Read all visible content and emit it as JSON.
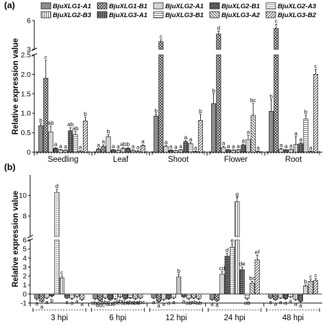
{
  "panels": {
    "a": "(a)",
    "b": "(b)"
  },
  "legend": [
    "BjuXLG1-A1",
    "BjuXLG1-B1",
    "BjuXLG2-A1",
    "BjuXLG2-B1",
    "BjuXLG2-A3",
    "BjuXLG2-B3",
    "BjuXLG3-A1",
    "BjuXLG3-B1",
    "BjuXLG3-A2",
    "BjuXLG3-B2"
  ],
  "chart_data": [
    {
      "panel": "(a)",
      "type": "bar",
      "ylabel": "Relative expression  value",
      "categories": [
        "Seedling",
        "Leaf",
        "Shoot",
        "Flower",
        "Root"
      ],
      "axis_break": {
        "lower": [
          0,
          2.5
        ],
        "upper": [
          3,
          6
        ]
      },
      "yticks": [
        0,
        0.5,
        1.0,
        1.5,
        2.0,
        2.5,
        3,
        6
      ],
      "series": [
        {
          "name": "BjuXLG1-A1",
          "values": [
            0.68,
            0.08,
            0.93,
            1.25,
            1.05
          ],
          "errors": [
            0.05,
            0.02,
            0.05,
            0.25,
            0.3
          ],
          "letters": [
            "b",
            "a",
            "b",
            "b",
            "b"
          ]
        },
        {
          "name": "BjuXLG1-B1",
          "values": [
            1.9,
            0.15,
            3.8,
            4.6,
            5.2
          ],
          "errors": [
            0.45,
            0.04,
            0.2,
            0.3,
            0.4
          ],
          "letters": [
            "c",
            "a",
            "c",
            "d",
            "c"
          ]
        },
        {
          "name": "BjuXLG2-A1",
          "values": [
            0.52,
            0.4,
            0.15,
            0.12,
            0.08
          ],
          "errors": [
            0.15,
            0.05,
            0.03,
            0.03,
            0.02
          ],
          "letters": [
            "ab",
            "b",
            "a",
            "a",
            "a"
          ]
        },
        {
          "name": "BjuXLG2-B1",
          "values": [
            0.1,
            0.06,
            0.05,
            0.06,
            0.06
          ],
          "errors": [
            0.02,
            0.01,
            0.01,
            0.01,
            0.01
          ],
          "letters": [
            "a",
            "a",
            "a",
            "a",
            "a"
          ]
        },
        {
          "name": "BjuXLG2-A3",
          "values": [
            0.06,
            0.05,
            0.04,
            0.05,
            0.07
          ],
          "errors": [
            0.01,
            0.01,
            0.01,
            0.01,
            0.01
          ],
          "letters": [
            "a",
            "a",
            "a",
            "a",
            "a"
          ]
        },
        {
          "name": "BjuXLG2-B3",
          "values": [
            0.05,
            0.1,
            0.06,
            0.06,
            0.2
          ],
          "errors": [
            0.01,
            0.02,
            0.01,
            0.01,
            0.2
          ],
          "letters": [
            "a",
            "ab",
            "a",
            "a",
            "a"
          ]
        },
        {
          "name": "BjuXLG3-A1",
          "values": [
            0.55,
            0.1,
            0.27,
            0.18,
            0.22
          ],
          "errors": [
            0.08,
            0.02,
            0.03,
            0.03,
            0.03
          ],
          "letters": [
            "ab",
            "b",
            "a",
            "a",
            "a"
          ]
        },
        {
          "name": "BjuXLG3-B1",
          "values": [
            0.45,
            0.05,
            0.22,
            0.33,
            0.85
          ],
          "errors": [
            0.08,
            0.01,
            0.03,
            0.1,
            0.1
          ],
          "letters": [
            "ab",
            "a",
            "a",
            "a",
            "b"
          ]
        },
        {
          "name": "BjuXLG3-A2",
          "values": [
            0.03,
            0.03,
            0.02,
            0.95,
            0.02
          ],
          "errors": [
            0.01,
            0.01,
            0.01,
            0.3,
            0.01
          ],
          "letters": [
            "a",
            "a",
            "a",
            "bc",
            "a"
          ]
        },
        {
          "name": "BjuXLG3-B2",
          "values": [
            0.8,
            0.17,
            0.82,
            0.02,
            2.0
          ],
          "errors": [
            0.1,
            0.02,
            0.15,
            0.01,
            0.12
          ],
          "letters": [
            "b",
            "a",
            "b",
            "a",
            "c"
          ]
        }
      ]
    },
    {
      "panel": "(b)",
      "type": "bar",
      "ylabel": "Relative expression  value",
      "categories": [
        "3 hpi",
        "6 hpi",
        "12 hpi",
        "24 hpi",
        "48 hpi"
      ],
      "axis_break": {
        "lower": [
          -1,
          6
        ],
        "upper": [
          6,
          12
        ]
      },
      "yticks": [
        -1,
        0,
        1,
        2,
        3,
        4,
        5,
        6,
        8,
        10
      ],
      "series": [
        {
          "name": "BjuXLG1-A1",
          "values": [
            -0.5,
            -0.5,
            -0.4,
            -0.6,
            -0.4
          ],
          "errors": [
            0.15,
            0.1,
            0.1,
            0.1,
            0.1
          ],
          "letters": [
            "a",
            "abc",
            "a",
            "a",
            "a"
          ]
        },
        {
          "name": "BjuXLG1-B1",
          "values": [
            -0.8,
            -0.7,
            -0.8,
            -0.7,
            -0.6
          ],
          "errors": [
            0.2,
            0.1,
            0.1,
            0.1,
            0.1
          ],
          "letters": [
            "a",
            "abc",
            "a",
            "a",
            "a"
          ]
        },
        {
          "name": "BjuXLG2-A1",
          "values": [
            -0.4,
            -0.4,
            -0.6,
            2.2,
            -0.4
          ],
          "errors": [
            0.1,
            0.1,
            0.1,
            0.3,
            0.1
          ],
          "letters": [
            "a",
            "abc",
            "a",
            "cd",
            "a"
          ]
        },
        {
          "name": "BjuXLG2-B1",
          "values": [
            -0.2,
            -0.6,
            -0.5,
            4.2,
            -0.5
          ],
          "errors": [
            0.1,
            0.1,
            0.1,
            0.3,
            0.1
          ],
          "letters": [
            "b",
            "abc",
            "a",
            "d",
            "a"
          ]
        },
        {
          "name": "BjuXLG2-A3",
          "values": [
            10.3,
            -0.5,
            -0.4,
            5.2,
            -0.3
          ],
          "errors": [
            0.3,
            0.1,
            0.1,
            0.4,
            0.1
          ],
          "letters": [
            "d",
            "abc",
            "a",
            "e",
            "a"
          ]
        },
        {
          "name": "BjuXLG2-B3",
          "values": [
            1.8,
            -0.3,
            1.9,
            9.4,
            -0.6
          ],
          "errors": [
            0.2,
            0.1,
            0.3,
            0.4,
            0.1
          ],
          "letters": [
            "c",
            "abc",
            "b",
            "g",
            "a"
          ]
        },
        {
          "name": "BjuXLG3-A1",
          "values": [
            -0.4,
            -0.5,
            -0.3,
            2.7,
            -0.8
          ],
          "errors": [
            0.1,
            0.1,
            0.1,
            0.3,
            0.1
          ],
          "letters": [
            "a",
            "abc",
            "a",
            "de",
            "a"
          ]
        },
        {
          "name": "BjuXLG3-B1",
          "values": [
            -0.5,
            -0.4,
            -0.5,
            -0.5,
            0.9
          ],
          "errors": [
            0.1,
            0.1,
            0.1,
            0.1,
            0.1
          ],
          "letters": [
            "a",
            "abc",
            "ab",
            "ab",
            "b"
          ]
        },
        {
          "name": "BjuXLG3-A2",
          "values": [
            -0.3,
            -0.5,
            -0.4,
            1.2,
            1.4
          ],
          "errors": [
            0.1,
            0.1,
            0.1,
            0.2,
            0.2
          ],
          "letters": [
            "a",
            "abc",
            "ab",
            "bc",
            "c"
          ]
        },
        {
          "name": "BjuXLG3-B2",
          "values": [
            -0.6,
            -0.4,
            -0.5,
            3.8,
            1.5
          ],
          "errors": [
            0.1,
            0.1,
            0.1,
            0.5,
            0.2
          ],
          "letters": [
            "a",
            "abc",
            "ab",
            "ef",
            "c"
          ]
        }
      ]
    }
  ]
}
